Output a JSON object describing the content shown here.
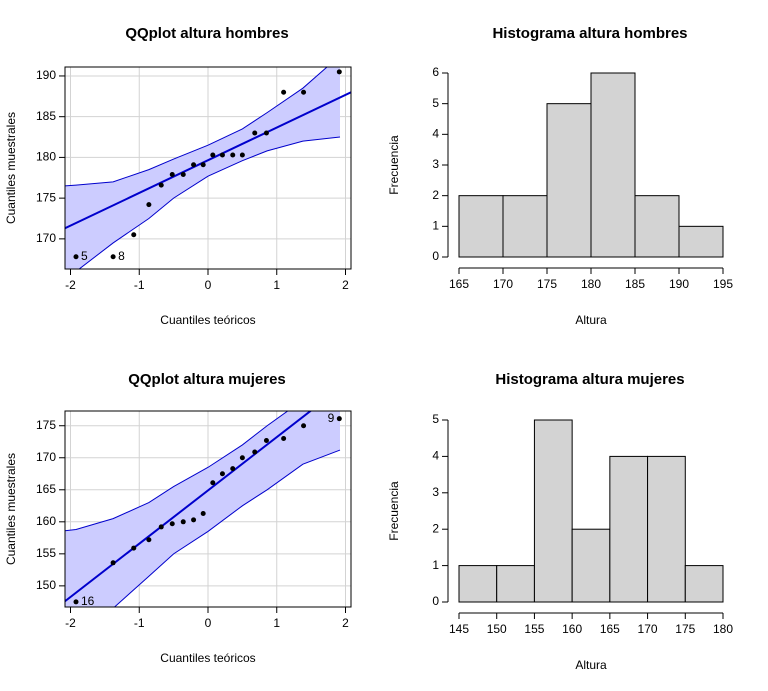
{
  "chart_data": [
    {
      "type": "qq",
      "title": "QQplot altura hombres",
      "xlabel": "Cuantiles teóricos",
      "ylabel": "Cuantiles muestrales",
      "x": [
        -1.92,
        -1.38,
        -1.08,
        -0.86,
        -0.68,
        -0.52,
        -0.36,
        -0.21,
        -0.07,
        0.07,
        0.21,
        0.36,
        0.5,
        0.68,
        0.85,
        1.1,
        1.39,
        1.91
      ],
      "values": [
        167.8,
        167.8,
        170.5,
        174.2,
        176.6,
        177.9,
        177.9,
        179.1,
        179.1,
        180.3,
        180.3,
        180.3,
        180.3,
        183.0,
        183.0,
        188.0,
        188.0,
        190.5
      ],
      "xlim": [
        -2.08,
        2.08
      ],
      "ylim": [
        166.3,
        191.1
      ],
      "xticks": [
        -2,
        -1,
        0,
        1,
        2
      ],
      "yticks": [
        170,
        175,
        180,
        185,
        190
      ],
      "grid": true,
      "color": "#000000",
      "line": {
        "x": [
          -2.08,
          2.08
        ],
        "y": [
          171.3,
          188.0
        ],
        "color": "#0000cc"
      },
      "band": {
        "x": [
          -2.08,
          -1.92,
          -1.38,
          -0.86,
          -0.5,
          0,
          0.5,
          0.86,
          1.38,
          1.92
        ],
        "upper": [
          176.5,
          176.6,
          177.0,
          178.5,
          179.8,
          181.5,
          183.5,
          185.5,
          188.5,
          192.5
        ],
        "lower": [
          165.5,
          166.0,
          169.5,
          172.5,
          175.0,
          177.7,
          179.6,
          180.8,
          182.0,
          182.5
        ],
        "color": "#ccccff"
      },
      "annotations": [
        {
          "text": "5",
          "x": -1.92,
          "y": 167.8
        },
        {
          "text": "8",
          "x": -1.38,
          "y": 167.8
        }
      ]
    },
    {
      "type": "histogram",
      "title": "Histograma altura hombres",
      "xlabel": "Altura",
      "ylabel": "Frecuencia",
      "bins": [
        165,
        170,
        175,
        180,
        185,
        190,
        195
      ],
      "values": [
        2,
        2,
        5,
        6,
        2,
        1
      ],
      "color": "#d3d3d3",
      "xlim": [
        165,
        195
      ],
      "ylim": [
        0,
        6
      ],
      "xticks": [
        165,
        170,
        175,
        180,
        185,
        190,
        195
      ],
      "yticks": [
        0,
        1,
        2,
        3,
        4,
        5,
        6
      ]
    },
    {
      "type": "qq",
      "title": "QQplot altura mujeres",
      "xlabel": "Cuantiles teóricos",
      "ylabel": "Cuantiles muestrales",
      "x": [
        -1.92,
        -1.38,
        -1.08,
        -0.86,
        -0.68,
        -0.52,
        -0.36,
        -0.21,
        -0.07,
        0.07,
        0.21,
        0.36,
        0.5,
        0.68,
        0.85,
        1.1,
        1.39,
        1.91
      ],
      "values": [
        147.5,
        153.6,
        155.9,
        157.2,
        159.2,
        159.7,
        160.0,
        160.3,
        161.3,
        166.1,
        167.5,
        168.3,
        170.0,
        170.9,
        172.7,
        173.0,
        175.0,
        176.1
      ],
      "xlim": [
        -2.08,
        2.08
      ],
      "ylim": [
        146.7,
        177.3
      ],
      "xticks": [
        -2,
        -1,
        0,
        1,
        2
      ],
      "yticks": [
        150,
        155,
        160,
        165,
        170,
        175
      ],
      "grid": true,
      "color": "#000000",
      "line": {
        "x": [
          -2.08,
          2.08
        ],
        "y": [
          147.6,
          182.2
        ],
        "color": "#0000cc"
      },
      "band": {
        "x": [
          -2.08,
          -1.92,
          -1.38,
          -0.86,
          -0.5,
          0,
          0.5,
          0.86,
          1.38,
          1.92
        ],
        "upper": [
          158.6,
          158.8,
          160.5,
          163.0,
          165.5,
          168.5,
          172.0,
          175.0,
          179.0,
          184.0
        ],
        "lower": [
          143.0,
          144.0,
          146.5,
          151.5,
          155.0,
          158.5,
          162.5,
          165.0,
          169.0,
          171.2
        ],
        "color": "#ccccff"
      },
      "annotations": [
        {
          "text": "16",
          "x": -1.92,
          "y": 147.5
        },
        {
          "text": "9",
          "x": 1.91,
          "y": 176.1
        }
      ]
    },
    {
      "type": "histogram",
      "title": "Histograma altura mujeres",
      "xlabel": "Altura",
      "ylabel": "Frecuencia",
      "bins": [
        145,
        150,
        155,
        160,
        165,
        170,
        175,
        180
      ],
      "values": [
        1,
        1,
        5,
        2,
        4,
        4,
        1
      ],
      "color": "#d3d3d3",
      "xlim": [
        145,
        180
      ],
      "ylim": [
        0,
        5
      ],
      "xticks": [
        145,
        150,
        155,
        160,
        165,
        170,
        175,
        180
      ],
      "yticks": [
        0,
        1,
        2,
        3,
        4,
        5
      ]
    }
  ]
}
